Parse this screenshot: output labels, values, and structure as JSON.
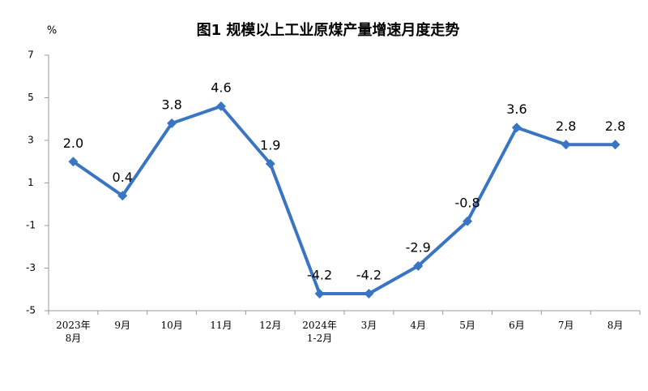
{
  "chart_data": {
    "type": "line",
    "title": "图1  规模以上工业原煤产量增速月度走势",
    "y_label": "%",
    "categories": [
      "2023年\n8月",
      "9月",
      "10月",
      "11月",
      "12月",
      "2024年\n1-2月",
      "3月",
      "4月",
      "5月",
      "6月",
      "7月",
      "8月"
    ],
    "values": [
      2.0,
      0.4,
      3.8,
      4.6,
      1.9,
      -4.2,
      -4.2,
      -2.9,
      -0.8,
      3.6,
      2.8,
      2.8
    ],
    "value_labels": [
      "2.0",
      "0.4",
      "3.8",
      "4.6",
      "1.9",
      "-4.2",
      "-4.2",
      "-2.9",
      "-0.8",
      "3.6",
      "2.8",
      "2.8"
    ],
    "color": "#3a75c4",
    "ylim": [
      -5,
      7
    ],
    "yticks": [
      -5,
      -3,
      -1,
      1,
      3,
      5,
      7
    ],
    "grid": false
  }
}
